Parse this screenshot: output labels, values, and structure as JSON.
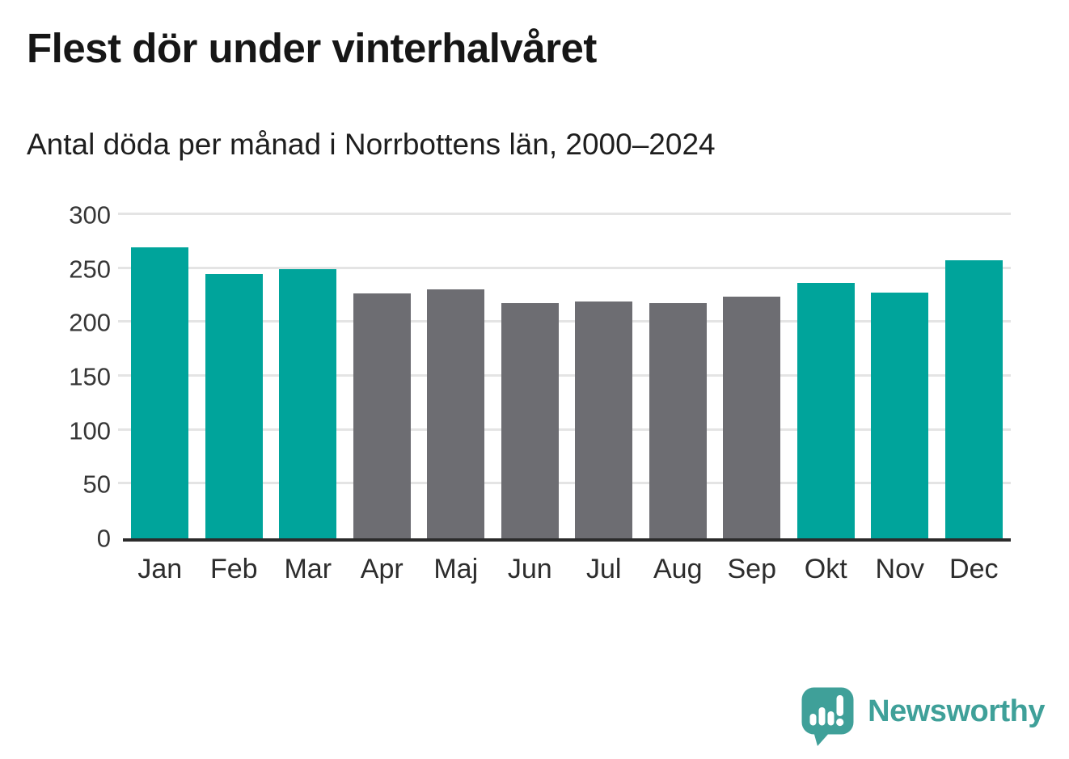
{
  "header": {
    "title": "Flest dör under vinterhalvåret",
    "subtitle": "Antal döda per månad i Norrbottens län, 2000–2024"
  },
  "chart_data": {
    "type": "bar",
    "title": "Flest dör under vinterhalvåret",
    "subtitle": "Antal döda per månad i Norrbottens län, 2000–2024",
    "categories": [
      "Jan",
      "Feb",
      "Mar",
      "Apr",
      "Maj",
      "Jun",
      "Jul",
      "Aug",
      "Sep",
      "Okt",
      "Nov",
      "Dec"
    ],
    "values": [
      270,
      245,
      250,
      227,
      231,
      218,
      220,
      218,
      224,
      237,
      228,
      258
    ],
    "bar_colors": [
      "#00a49b",
      "#00a49b",
      "#00a49b",
      "#6d6d72",
      "#6d6d72",
      "#6d6d72",
      "#6d6d72",
      "#6d6d72",
      "#6d6d72",
      "#00a49b",
      "#00a49b",
      "#00a49b"
    ],
    "ylim": [
      0,
      300
    ],
    "yticks": [
      0,
      50,
      100,
      150,
      200,
      250,
      300
    ],
    "xlabel": "",
    "ylabel": "",
    "grid": "horizontal",
    "legend": "none",
    "colors": {
      "winter_bars": "#00a49b",
      "summer_bars": "#6d6d72",
      "gridline": "#e4e4e4",
      "axis": "#2b2b2b"
    }
  },
  "footer": {
    "brand": "Newsworthy",
    "brand_color": "#3fa099",
    "logo_icon": "speech-bubble-chart-icon"
  }
}
